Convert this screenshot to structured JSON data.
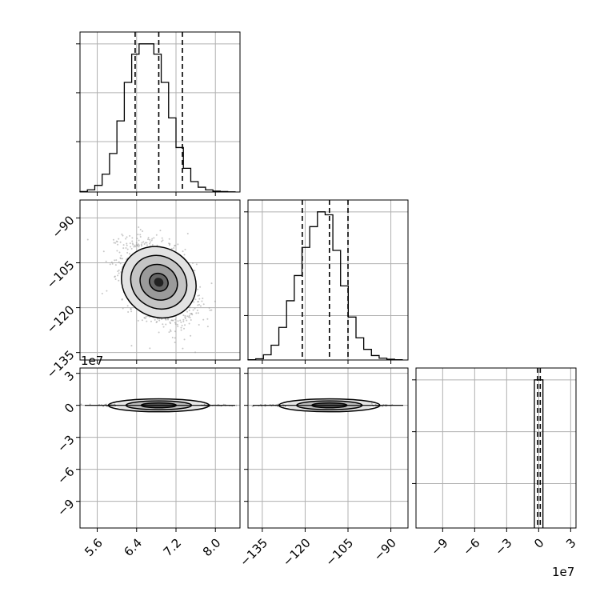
{
  "figure": {
    "type": "corner-plot",
    "offset_labels": {
      "panel_1_0_y": "1e7",
      "panel_2_2_x": "1e7"
    }
  },
  "chart_data": [
    {
      "panel": "1d-param0",
      "type": "bar",
      "variable_index": 0,
      "xlim": [
        5.25,
        8.5
      ],
      "bin_edges": [
        5.25,
        5.4,
        5.55,
        5.7,
        5.85,
        6.0,
        6.15,
        6.3,
        6.45,
        6.6,
        6.75,
        6.9,
        7.05,
        7.2,
        7.35,
        7.5,
        7.65,
        7.8,
        7.95,
        8.1,
        8.25,
        8.4
      ],
      "counts": [
        3,
        15,
        45,
        120,
        260,
        480,
        740,
        930,
        1000,
        1000,
        930,
        740,
        500,
        300,
        160,
        70,
        32,
        14,
        6,
        3,
        1
      ],
      "quantiles": [
        6.37,
        6.85,
        7.33
      ],
      "x_ticks": [
        5.6,
        6.4,
        7.2,
        8.0
      ],
      "x_ticklabels": [],
      "y_ticks": [
        340,
        670,
        1000
      ],
      "ylim": [
        0,
        1080
      ]
    },
    {
      "panel": "2d-param0-param1",
      "type": "scatter",
      "xlim": [
        5.25,
        8.5
      ],
      "ylim": [
        -137.5,
        -84
      ],
      "center": [
        6.85,
        -111.5
      ],
      "sigma": [
        0.34,
        6.4
      ],
      "correlation": -0.42,
      "contour_levels_sigma": [
        0.5,
        1.0,
        1.5,
        2.0
      ],
      "x_ticks": [
        5.6,
        6.4,
        7.2,
        8.0
      ],
      "y_ticks": [
        -90,
        -105,
        -120,
        -135
      ],
      "y_ticklabels": [
        "−90",
        "−105",
        "−120",
        "−135"
      ]
    },
    {
      "panel": "1d-param1",
      "type": "bar",
      "variable_index": 1,
      "xlim": [
        -140,
        -84
      ],
      "bin_edges": [
        -140,
        -137.3,
        -134.6,
        -131.9,
        -129.2,
        -126.5,
        -123.8,
        -121.1,
        -118.4,
        -115.7,
        -113.0,
        -110.3,
        -107.6,
        -104.9,
        -102.2,
        -99.5,
        -96.8,
        -94.1,
        -91.4,
        -88.7,
        -86.0
      ],
      "counts": [
        2,
        8,
        35,
        100,
        220,
        400,
        570,
        760,
        900,
        1000,
        980,
        740,
        500,
        290,
        150,
        72,
        30,
        12,
        5,
        2
      ],
      "quantiles": [
        -121,
        -111.5,
        -105
      ],
      "x_ticks": [
        -135,
        -120,
        -105,
        -90
      ],
      "x_ticklabels": [],
      "y_ticks": [
        300,
        650,
        1000
      ],
      "ylim": [
        0,
        1080
      ]
    },
    {
      "panel": "2d-param0-param2",
      "type": "scatter",
      "xlim": [
        5.25,
        8.5
      ],
      "ylim": [
        -11.5,
        3.5
      ],
      "center": [
        6.85,
        0
      ],
      "x_ticks": [
        5.6,
        6.4,
        7.2,
        8.0
      ],
      "x_ticklabels": [
        "5.6",
        "6.4",
        "7.2",
        "8.0"
      ],
      "y_ticks": [
        3,
        0,
        -3,
        -6,
        -9
      ],
      "y_ticklabels": [
        "3",
        "0",
        "−3",
        "−6",
        "−9"
      ]
    },
    {
      "panel": "2d-param1-param2",
      "type": "scatter",
      "xlim": [
        -140,
        -84
      ],
      "ylim": [
        -11.5,
        3.5
      ],
      "center": [
        -111.5,
        0
      ],
      "x_ticks": [
        -135,
        -120,
        -105,
        -90
      ],
      "x_ticklabels": [
        "−135",
        "−120",
        "−105",
        "−90"
      ],
      "y_ticks": [
        3,
        0,
        -3,
        -6,
        -9
      ],
      "y_ticklabels": []
    },
    {
      "panel": "1d-param2",
      "type": "bar",
      "variable_index": 2,
      "xlim": [
        -11.5,
        3.5
      ],
      "bin_edges": [
        -0.4,
        0.4
      ],
      "counts": [
        1000
      ],
      "quantiles": [
        -0.1,
        0.15
      ],
      "x_ticks": [
        -9,
        -6,
        -3,
        0,
        3
      ],
      "x_ticklabels": [
        "−9",
        "−6",
        "−3",
        "0",
        "3"
      ],
      "y_ticks": [
        300,
        650,
        1000
      ],
      "ylim": [
        0,
        1080
      ]
    }
  ]
}
